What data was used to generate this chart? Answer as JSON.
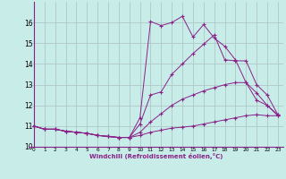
{
  "xlabel": "Windchill (Refroidissement éolien,°C)",
  "background_color": "#c8ece8",
  "line_color": "#882288",
  "grid_color": "#b0c8c8",
  "xlim": [
    -0.5,
    23.5
  ],
  "ylim": [
    10.0,
    17.0
  ],
  "yticks": [
    10,
    11,
    12,
    13,
    14,
    15,
    16
  ],
  "xticks": [
    0,
    1,
    2,
    3,
    4,
    5,
    6,
    7,
    8,
    9,
    10,
    11,
    12,
    13,
    14,
    15,
    16,
    17,
    18,
    19,
    20,
    21,
    22,
    23
  ],
  "lines": [
    {
      "x": [
        0,
        1,
        2,
        3,
        4,
        5,
        6,
        7,
        8,
        9,
        10,
        11,
        12,
        13,
        14,
        15,
        16,
        17,
        18,
        19,
        20,
        21,
        22,
        23
      ],
      "y": [
        11.0,
        10.85,
        10.85,
        10.75,
        10.7,
        10.65,
        10.55,
        10.5,
        10.45,
        10.45,
        10.55,
        10.7,
        10.8,
        10.9,
        10.95,
        11.0,
        11.1,
        11.2,
        11.3,
        11.4,
        11.5,
        11.55,
        11.5,
        11.5
      ]
    },
    {
      "x": [
        0,
        1,
        2,
        3,
        4,
        5,
        6,
        7,
        8,
        9,
        10,
        11,
        12,
        13,
        14,
        15,
        16,
        17,
        18,
        19,
        20,
        21,
        22,
        23
      ],
      "y": [
        11.0,
        10.85,
        10.85,
        10.75,
        10.7,
        10.65,
        10.55,
        10.5,
        10.45,
        10.45,
        10.7,
        11.2,
        11.6,
        12.0,
        12.3,
        12.5,
        12.7,
        12.85,
        13.0,
        13.1,
        13.1,
        12.6,
        12.0,
        11.5
      ]
    },
    {
      "x": [
        0,
        1,
        2,
        3,
        4,
        5,
        6,
        7,
        8,
        9,
        10,
        11,
        12,
        13,
        14,
        15,
        16,
        17,
        18,
        19,
        20,
        21,
        22,
        23
      ],
      "y": [
        11.0,
        10.85,
        10.85,
        10.75,
        10.7,
        10.65,
        10.55,
        10.5,
        10.45,
        10.45,
        11.1,
        12.5,
        12.65,
        13.5,
        14.0,
        14.5,
        14.95,
        15.4,
        14.2,
        14.15,
        14.15,
        13.0,
        12.5,
        11.55
      ]
    },
    {
      "x": [
        0,
        1,
        2,
        3,
        4,
        5,
        6,
        7,
        8,
        9,
        10,
        11,
        12,
        13,
        14,
        15,
        16,
        17,
        18,
        19,
        20,
        21,
        22,
        23
      ],
      "y": [
        11.0,
        10.85,
        10.85,
        10.75,
        10.7,
        10.65,
        10.55,
        10.5,
        10.45,
        10.45,
        11.4,
        16.05,
        15.85,
        16.0,
        16.3,
        15.3,
        15.9,
        15.25,
        14.85,
        14.2,
        13.1,
        12.25,
        12.0,
        11.55
      ]
    }
  ]
}
